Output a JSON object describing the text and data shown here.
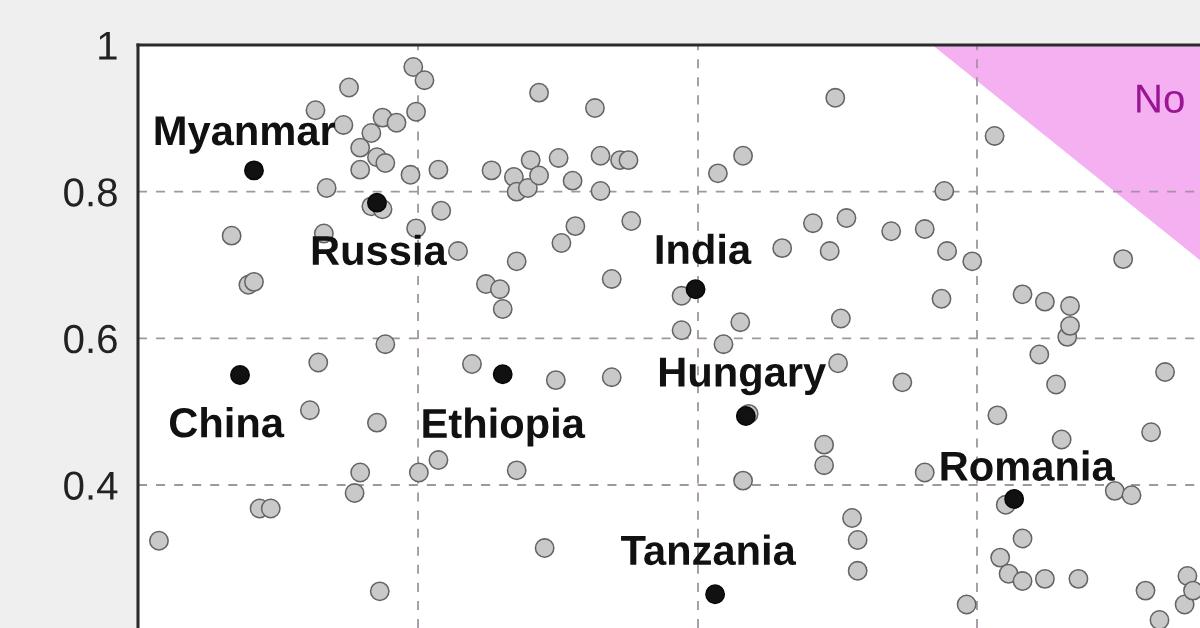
{
  "chart_data": {
    "type": "scatter",
    "marker": "circle",
    "grid": "y",
    "tick_labels": "y",
    "ylim": [
      0.205,
      1
    ],
    "yticks": [
      0.4,
      0.6,
      0.8,
      1
    ],
    "categories": [
      null,
      null,
      null,
      null,
      null,
      null,
      null,
      null,
      null,
      null,
      null,
      null,
      null,
      null,
      null,
      null,
      null,
      null,
      null,
      null,
      null,
      null,
      null,
      null,
      null,
      null,
      null,
      null,
      null,
      null,
      null,
      null,
      null,
      null,
      null,
      null,
      null,
      null,
      null,
      null,
      null,
      null,
      null,
      null,
      null,
      null,
      null,
      null,
      null,
      null,
      null,
      null,
      null,
      null,
      null,
      null,
      null,
      null,
      null,
      null,
      null,
      null,
      null,
      null,
      null,
      null,
      null,
      null,
      null,
      null,
      null,
      null,
      null,
      null,
      null,
      null,
      null,
      null,
      null,
      null,
      null,
      null,
      null,
      null,
      null,
      null,
      null,
      null,
      null,
      null,
      null,
      null,
      null,
      null,
      null,
      null,
      null,
      null,
      null,
      null,
      null,
      null,
      null,
      null,
      null,
      null,
      null,
      null,
      null,
      null,
      null,
      null,
      null,
      null,
      null,
      null,
      null,
      null,
      null,
      null,
      null,
      null,
      null,
      null,
      null,
      null,
      null,
      null,
      null,
      null,
      null,
      null,
      null,
      null,
      null,
      null,
      null,
      null,
      null,
      null,
      null,
      null,
      null,
      null,
      null,
      null,
      null,
      null,
      null,
      null,
      null,
      null,
      null,
      null,
      null,
      null,
      null,
      null,
      null,
      null,
      null,
      null,
      null,
      null,
      null,
      null,
      null,
      null,
      null,
      null,
      null,
      null,
      null,
      null,
      null,
      null,
      null,
      null,
      null,
      null,
      null,
      null,
      null,
      null,
      null,
      null,
      null,
      null,
      null,
      null,
      null,
      null,
      null,
      null,
      null,
      null,
      null,
      null,
      null,
      null,
      null,
      null,
      null,
      null,
      null,
      null,
      null,
      null,
      null,
      null,
      null,
      null,
      null,
      null,
      null,
      null,
      null,
      null,
      null,
      null,
      null,
      null,
      null,
      null,
      null,
      null,
      null,
      null,
      null,
      null,
      null,
      null,
      null,
      null,
      null,
      null,
      null,
      null,
      null,
      null,
      null,
      null,
      null,
      null,
      null,
      null,
      null,
      null,
      null,
      null,
      null,
      null,
      null,
      null,
      null,
      null,
      null,
      null,
      null,
      null,
      null,
      null,
      null,
      null,
      null,
      null,
      null,
      null,
      null,
      null,
      null,
      null,
      null,
      null,
      null,
      null,
      null,
      null,
      null,
      null,
      null,
      null,
      null,
      null,
      null,
      null,
      null,
      null,
      null,
      null,
      null,
      null,
      null,
      null,
      null,
      null,
      null,
      null,
      null,
      null,
      null,
      null,
      null,
      null,
      null,
      null,
      null,
      null,
      null,
      null,
      null,
      null,
      null,
      null,
      null,
      null,
      null,
      null,
      null,
      null,
      null,
      null,
      null,
      null,
      null,
      null,
      null,
      null,
      null,
      null,
      null,
      null,
      null,
      null,
      null,
      null,
      null,
      null,
      null,
      null,
      null,
      null,
      null,
      null,
      null,
      null,
      null,
      null,
      null,
      null,
      null,
      null,
      null,
      null,
      null,
      null,
      null,
      null,
      null,
      null,
      null,
      null,
      null,
      null,
      null,
      null,
      null,
      null,
      null,
      null,
      null,
      null,
      null,
      null,
      null,
      null,
      null,
      null,
      null,
      null
    ],
    "series": [
      {
        "color": "#c9c9c9",
        "values": [
          null,
          null,
          null,
          null,
          null,
          null,
          null,
          0.324,
          null,
          null,
          null,
          null,
          null,
          null,
          null,
          null,
          null,
          null,
          null,
          null,
          null,
          null,
          null,
          null,
          null,
          null,
          null,
          null,
          null,
          null,
          null,
          null,
          null,
          0.74,
          null,
          null,
          null,
          null,
          null,
          0.673,
          null,
          0.677,
          null,
          0.368,
          null,
          null,
          null,
          0.368,
          null,
          null,
          null,
          null,
          null,
          null,
          null,
          null,
          null,
          null,
          null,
          null,
          null,
          0.502,
          null,
          0.911,
          0.567,
          null,
          0.743,
          0.805,
          null,
          null,
          null,
          null,
          null,
          0.891,
          null,
          0.942,
          null,
          0.389,
          null,
          0.86,
          null,
          null,
          null,
          0.88,
          null,
          0.847,
          0.255,
          0.901,
          0.839,
          null,
          null,
          null,
          0.894,
          null,
          null,
          null,
          null,
          0.823,
          0.97,
          0.909,
          0.417,
          null,
          0.952,
          null,
          null,
          null,
          null,
          0.83,
          0.774,
          null,
          null,
          null,
          null,
          null,
          0.719,
          null,
          null,
          null,
          null,
          0.565,
          null,
          null,
          null,
          null,
          0.674,
          null,
          0.829,
          null,
          null,
          0.667,
          0.64,
          null,
          null,
          null,
          0.82,
          0.8,
          null,
          null,
          null,
          0.805,
          0.843,
          null,
          null,
          0.935,
          null,
          0.314,
          null,
          null,
          null,
          0.543,
          0.846,
          0.73,
          null,
          null,
          null,
          0.815,
          0.753,
          null,
          null,
          null,
          null,
          null,
          null,
          0.914,
          null,
          0.849,
          null,
          null,
          null,
          0.681,
          null,
          null,
          0.843,
          null,
          null,
          0.843,
          0.76,
          null,
          null,
          null,
          null,
          null,
          null,
          null,
          null,
          null,
          null,
          null,
          null,
          null,
          null,
          null,
          null,
          null,
          0.658,
          null,
          null,
          null,
          null,
          null,
          null,
          null,
          null,
          null,
          null,
          null,
          null,
          0.825,
          null,
          0.592,
          null,
          null,
          null,
          null,
          null,
          0.622,
          0.849,
          null,
          0.497,
          null,
          null,
          null,
          null,
          null,
          null,
          null,
          null,
          null,
          null,
          null,
          0.723,
          null,
          null,
          null,
          null,
          null,
          null,
          null,
          null,
          null,
          null,
          0.757,
          null,
          null,
          null,
          0.455,
          null,
          0.719,
          null,
          0.928,
          0.566,
          0.627,
          null,
          0.764,
          null,
          0.355,
          null,
          0.325,
          null,
          null,
          null,
          null,
          null,
          null,
          null,
          null,
          null,
          null,
          null,
          0.746,
          null,
          null,
          null,
          0.54,
          null,
          null,
          null,
          null,
          null,
          null,
          null,
          0.749,
          null,
          null,
          null,
          null,
          null,
          0.654,
          0.801,
          0.719,
          null,
          null,
          null,
          null,
          null,
          null,
          0.237,
          null,
          0.705,
          null,
          null,
          null,
          null,
          null,
          null,
          null,
          0.876,
          0.495,
          0.301,
          null,
          0.373,
          0.279,
          null,
          null,
          null,
          null,
          0.66,
          null,
          null,
          null,
          null,
          null,
          0.578,
          null,
          0.65,
          null,
          null,
          null,
          0.537,
          null,
          0.462,
          null,
          0.602,
          0.644,
          null,
          null,
          0.272,
          null,
          null,
          null,
          null,
          null,
          null,
          null,
          null,
          null,
          null,
          null,
          null,
          0.392,
          null,
          null,
          0.708,
          null,
          null,
          0.386,
          null,
          null,
          null,
          null,
          0.256,
          null,
          0.472,
          null,
          null,
          0.216,
          null,
          0.554,
          null,
          null,
          null,
          null,
          null,
          null,
          0.237,
          0.276,
          null,
          0.256,
          null,
          null
        ]
      },
      {
        "color": "#c9c9c9",
        "values": [
          null,
          null,
          null,
          null,
          null,
          null,
          null,
          null,
          null,
          null,
          null,
          null,
          null,
          null,
          null,
          null,
          null,
          null,
          null,
          null,
          null,
          null,
          null,
          null,
          null,
          null,
          null,
          null,
          null,
          null,
          null,
          null,
          null,
          null,
          null,
          null,
          null,
          null,
          null,
          null,
          null,
          null,
          null,
          null,
          null,
          null,
          null,
          null,
          null,
          null,
          null,
          null,
          null,
          null,
          null,
          null,
          null,
          null,
          null,
          null,
          null,
          null,
          null,
          null,
          null,
          null,
          null,
          null,
          null,
          null,
          null,
          null,
          null,
          null,
          null,
          null,
          null,
          null,
          null,
          0.83,
          null,
          null,
          null,
          0.78,
          null,
          0.485,
          null,
          0.776,
          0.592,
          null,
          null,
          null,
          null,
          null,
          null,
          null,
          null,
          null,
          null,
          0.75,
          null,
          null,
          null,
          null,
          null,
          null,
          null,
          0.434,
          null,
          null,
          null,
          null,
          null,
          null,
          null,
          null,
          null,
          null,
          null,
          null,
          null,
          null,
          null,
          null,
          null,
          null,
          null,
          null,
          null,
          null,
          null,
          null,
          null,
          null,
          null,
          0.705,
          null,
          null,
          null,
          null,
          null,
          null,
          null,
          0.822,
          null,
          null,
          null,
          null,
          null,
          null,
          null,
          null,
          null,
          null,
          null,
          null,
          null,
          null,
          null,
          null,
          null,
          null,
          null,
          null,
          null,
          0.801,
          null,
          null,
          null,
          0.547,
          null,
          null,
          null,
          null,
          null,
          null,
          null,
          null,
          null,
          null,
          null,
          null,
          null,
          null,
          null,
          null,
          null,
          null,
          null,
          null,
          null,
          null,
          null,
          null,
          0.611,
          null,
          null,
          null,
          null,
          null,
          null,
          null,
          null,
          null,
          null,
          null,
          null,
          null,
          null,
          null,
          null,
          null,
          null,
          null,
          null,
          null,
          0.406,
          null,
          null,
          null,
          null,
          null,
          null,
          null,
          null,
          null,
          null,
          null,
          null,
          null,
          null,
          null,
          null,
          null,
          null,
          null,
          null,
          null,
          null,
          null,
          null,
          null,
          null,
          null,
          null,
          0.427,
          null,
          null,
          null,
          null,
          null,
          null,
          null,
          null,
          null,
          null,
          null,
          0.283,
          null,
          null,
          null,
          null,
          null,
          null,
          null,
          null,
          null,
          null,
          null,
          null,
          null,
          null,
          null,
          null,
          null,
          null,
          null,
          null,
          null,
          null,
          null,
          0.417,
          null,
          null,
          null,
          null,
          null,
          null,
          null,
          null,
          null,
          null,
          null,
          null,
          null,
          null,
          null,
          null,
          null,
          null,
          null,
          null,
          null,
          null,
          null,
          null,
          null,
          null,
          null,
          null,
          null,
          null,
          null,
          null,
          null,
          null,
          0.327,
          null,
          null,
          null,
          null,
          null,
          null,
          null,
          0.272,
          null,
          null,
          null,
          null,
          null,
          null,
          null,
          null,
          0.617,
          null,
          null,
          null,
          null,
          null,
          null,
          null,
          null,
          null,
          null,
          null,
          null,
          null,
          null,
          null,
          null,
          null,
          null,
          null,
          null,
          null,
          null,
          null,
          null,
          null,
          null,
          null,
          null,
          null,
          null,
          null,
          null,
          null,
          null,
          null,
          null,
          null,
          null,
          null,
          null,
          null,
          null,
          null,
          null,
          null,
          null
        ]
      },
      {
        "color": "#c9c9c9",
        "values": [
          null,
          null,
          null,
          null,
          null,
          null,
          null,
          null,
          null,
          null,
          null,
          null,
          null,
          null,
          null,
          null,
          null,
          null,
          null,
          null,
          null,
          null,
          null,
          null,
          null,
          null,
          null,
          null,
          null,
          null,
          null,
          null,
          null,
          null,
          null,
          null,
          null,
          null,
          null,
          null,
          null,
          null,
          null,
          null,
          null,
          null,
          null,
          null,
          null,
          null,
          null,
          null,
          null,
          null,
          null,
          null,
          null,
          null,
          null,
          null,
          null,
          null,
          null,
          null,
          null,
          null,
          null,
          null,
          null,
          null,
          null,
          null,
          null,
          null,
          null,
          null,
          null,
          null,
          null,
          0.417,
          null,
          null,
          null,
          null,
          null,
          null,
          null,
          null,
          null,
          null,
          null,
          null,
          null,
          null,
          null,
          null,
          null,
          null,
          null,
          null,
          null,
          null,
          null,
          null,
          null,
          null,
          null,
          null,
          null,
          null,
          null,
          null,
          null,
          null,
          null,
          null,
          null,
          null,
          null,
          null,
          null,
          null,
          null,
          null,
          null,
          null,
          null,
          null,
          null,
          null,
          null,
          null,
          null,
          null,
          null,
          0.42,
          null,
          null,
          null,
          null,
          null,
          null,
          null,
          null,
          null,
          null,
          null,
          null,
          null,
          null,
          null,
          null,
          null,
          null,
          null,
          null,
          null,
          null,
          null,
          null,
          null,
          null,
          null,
          null,
          null,
          null,
          null,
          null,
          null,
          null,
          null,
          null,
          null,
          null,
          null,
          null,
          null,
          null,
          null,
          null,
          null,
          null,
          null,
          null,
          null,
          null,
          null,
          null,
          null,
          null,
          null,
          null,
          null,
          null,
          null,
          null,
          null,
          null,
          null,
          null,
          null,
          null,
          null,
          null,
          null,
          null,
          null,
          null,
          null,
          null,
          null,
          null,
          null,
          null,
          null,
          null,
          null,
          null,
          null,
          null,
          null,
          null,
          null,
          null,
          null,
          null,
          null,
          null,
          null,
          null,
          null,
          null,
          null,
          null,
          null,
          null,
          null,
          null,
          null,
          null,
          null,
          null,
          null,
          null,
          null,
          null,
          null,
          null,
          null,
          null,
          null,
          null,
          null,
          null,
          null,
          null,
          null,
          null,
          null,
          null,
          null,
          null,
          null,
          null,
          null,
          null,
          null,
          null,
          null,
          null,
          null,
          null,
          null,
          null,
          null,
          null,
          null,
          null,
          null,
          null,
          null,
          null,
          null,
          null,
          null,
          null,
          null,
          null,
          null,
          null,
          null,
          null,
          null,
          null,
          null,
          null,
          null,
          null,
          null,
          null,
          null,
          null,
          null,
          null,
          null,
          null,
          null,
          null,
          null,
          null,
          null,
          null,
          null,
          null,
          null,
          null,
          0.269,
          null,
          null,
          null,
          null,
          null,
          null,
          null,
          null,
          null,
          null,
          null,
          null,
          null,
          null,
          null,
          null,
          null,
          null,
          null,
          null,
          null,
          null,
          null,
          null,
          null,
          null,
          null,
          null,
          null,
          null,
          null,
          null,
          null,
          null,
          null,
          null,
          null,
          null,
          null,
          null,
          null,
          null,
          null,
          null,
          null,
          null,
          null,
          null,
          null,
          null,
          null,
          null,
          null,
          null,
          null,
          null,
          null,
          null,
          null,
          null,
          null,
          null,
          null
        ]
      },
      {
        "color": "#111111",
        "values": [
          null,
          null,
          null,
          null,
          null,
          null,
          null,
          null,
          null,
          null,
          null,
          null,
          null,
          null,
          null,
          null,
          null,
          null,
          null,
          null,
          null,
          null,
          null,
          null,
          null,
          null,
          null,
          null,
          null,
          null,
          null,
          null,
          null,
          null,
          null,
          null,
          0.55,
          null,
          null,
          null,
          null,
          0.829,
          null,
          null,
          null,
          null,
          null,
          null,
          null,
          null,
          null,
          null,
          null,
          null,
          null,
          null,
          null,
          null,
          null,
          null,
          null,
          null,
          null,
          null,
          null,
          null,
          null,
          null,
          null,
          null,
          null,
          null,
          null,
          null,
          null,
          null,
          null,
          null,
          null,
          null,
          null,
          null,
          null,
          null,
          null,
          0.785,
          null,
          null,
          null,
          null,
          null,
          null,
          null,
          null,
          null,
          null,
          null,
          null,
          null,
          null,
          null,
          null,
          null,
          null,
          null,
          null,
          null,
          null,
          null,
          null,
          null,
          null,
          null,
          null,
          null,
          null,
          null,
          null,
          null,
          null,
          null,
          null,
          null,
          null,
          null,
          null,
          null,
          null,
          null,
          null,
          0.551,
          null,
          null,
          null,
          null,
          null,
          null,
          null,
          null,
          null,
          null,
          null,
          null,
          null,
          null,
          null,
          null,
          null,
          null,
          null,
          null,
          null,
          null,
          null,
          null,
          null,
          null,
          null,
          null,
          null,
          null,
          null,
          null,
          null,
          null,
          null,
          null,
          null,
          null,
          null,
          null,
          null,
          null,
          null,
          null,
          null,
          null,
          null,
          null,
          null,
          null,
          null,
          null,
          null,
          null,
          null,
          null,
          null,
          null,
          null,
          null,
          null,
          null,
          null,
          null,
          null,
          null,
          null,
          null,
          0.667,
          null,
          null,
          null,
          null,
          null,
          null,
          0.251,
          null,
          null,
          null,
          null,
          null,
          null,
          null,
          null,
          null,
          null,
          0.494,
          null,
          null,
          null,
          null,
          null,
          null,
          null,
          null,
          null,
          null,
          null,
          null,
          null,
          null,
          null,
          null,
          null,
          null,
          null,
          null,
          null,
          null,
          null,
          null,
          null,
          null,
          null,
          null,
          null,
          null,
          null,
          null,
          null,
          null,
          null,
          null,
          null,
          null,
          null,
          null,
          null,
          null,
          null,
          null,
          null,
          null,
          null,
          null,
          null,
          null,
          null,
          null,
          null,
          null,
          null,
          null,
          null,
          null,
          null,
          null,
          null,
          null,
          null,
          null,
          null,
          null,
          null,
          null,
          null,
          null,
          null,
          null,
          null,
          null,
          null,
          null,
          null,
          null,
          null,
          null,
          null,
          null,
          null,
          null,
          null,
          null,
          null,
          null,
          null,
          null,
          null,
          null,
          null,
          null,
          null,
          0.381,
          null,
          null,
          null,
          null,
          null,
          null,
          null,
          null,
          null,
          null,
          null,
          null,
          null,
          null,
          null,
          null,
          null,
          null,
          null,
          null,
          null,
          null,
          null,
          null,
          null,
          null,
          null,
          null,
          null,
          null,
          null,
          null,
          null,
          null,
          null,
          null,
          null,
          null,
          null,
          null,
          null,
          null,
          null,
          null,
          null,
          null,
          null,
          null,
          null,
          null,
          null,
          null,
          null,
          null,
          null,
          null,
          null,
          null,
          null,
          null,
          null,
          null,
          null,
          null,
          null,
          null
        ],
        "value_labels": [
          null,
          null,
          null,
          null,
          null,
          null,
          null,
          null,
          null,
          null,
          null,
          null,
          null,
          null,
          null,
          null,
          null,
          null,
          null,
          null,
          null,
          null,
          null,
          null,
          null,
          null,
          null,
          null,
          null,
          null,
          null,
          null,
          null,
          null,
          null,
          null,
          "China",
          null,
          null,
          null,
          null,
          "Myanmar",
          null,
          null,
          null,
          null,
          null,
          null,
          null,
          null,
          null,
          null,
          null,
          null,
          null,
          null,
          null,
          null,
          null,
          null,
          null,
          null,
          null,
          null,
          null,
          null,
          null,
          null,
          null,
          null,
          null,
          null,
          null,
          null,
          null,
          null,
          null,
          null,
          null,
          null,
          null,
          null,
          null,
          null,
          null,
          "Russia",
          null,
          null,
          null,
          null,
          null,
          null,
          null,
          null,
          null,
          null,
          null,
          null,
          null,
          null,
          null,
          null,
          null,
          null,
          null,
          null,
          null,
          null,
          null,
          null,
          null,
          null,
          null,
          null,
          null,
          null,
          null,
          null,
          null,
          null,
          null,
          null,
          null,
          null,
          null,
          null,
          null,
          null,
          null,
          null,
          "Ethiopia",
          null,
          null,
          null,
          null,
          null,
          null,
          null,
          null,
          null,
          null,
          null,
          null,
          null,
          null,
          null,
          null,
          null,
          null,
          null,
          null,
          null,
          null,
          null,
          null,
          null,
          null,
          null,
          null,
          null,
          null,
          null,
          null,
          null,
          null,
          null,
          null,
          null,
          null,
          null,
          null,
          null,
          null,
          null,
          null,
          null,
          null,
          null,
          null,
          null,
          null,
          null,
          null,
          null,
          null,
          null,
          null,
          null,
          null,
          null,
          null,
          null,
          null,
          null,
          null,
          null,
          null,
          null,
          null,
          "India",
          null,
          null,
          null,
          null,
          null,
          null,
          "Tanzania",
          null,
          null,
          null,
          null,
          null,
          null,
          null,
          null,
          null,
          null,
          "Hungary",
          null,
          null,
          null,
          null,
          null,
          null,
          null,
          null,
          null,
          null,
          null,
          null,
          null,
          null,
          null,
          null,
          null,
          null,
          null,
          null,
          null,
          null,
          null,
          null,
          null,
          null,
          null,
          null,
          null,
          null,
          null,
          null,
          null,
          null,
          null,
          null,
          null,
          null,
          null,
          null,
          null,
          null,
          null,
          null,
          null,
          null,
          null,
          null,
          null,
          null,
          null,
          null,
          null,
          null,
          null,
          null,
          null,
          null,
          null,
          null,
          null,
          null,
          null,
          null,
          null,
          null,
          null,
          null,
          null,
          null,
          null,
          null,
          null,
          null,
          null,
          null,
          null,
          null,
          null,
          null,
          null,
          null,
          null,
          null,
          null,
          null,
          null,
          null,
          null,
          null,
          null,
          null,
          null,
          null,
          null,
          "Romania",
          null,
          null,
          null,
          null,
          null,
          null,
          null,
          null,
          null,
          null,
          null,
          null,
          null,
          null,
          null,
          null,
          null,
          null,
          null,
          null,
          null,
          null,
          null,
          null,
          null,
          null,
          null,
          null,
          null,
          null,
          null,
          null,
          null,
          null,
          null,
          null,
          null,
          null,
          null,
          null,
          null,
          null,
          null,
          null,
          null,
          null,
          null,
          null,
          null,
          null,
          null,
          null,
          null,
          null,
          null,
          null,
          null,
          null,
          null,
          null,
          null,
          null,
          null,
          null,
          null,
          null
        ]
      }
    ],
    "annotations": [
      "No"
    ]
  }
}
